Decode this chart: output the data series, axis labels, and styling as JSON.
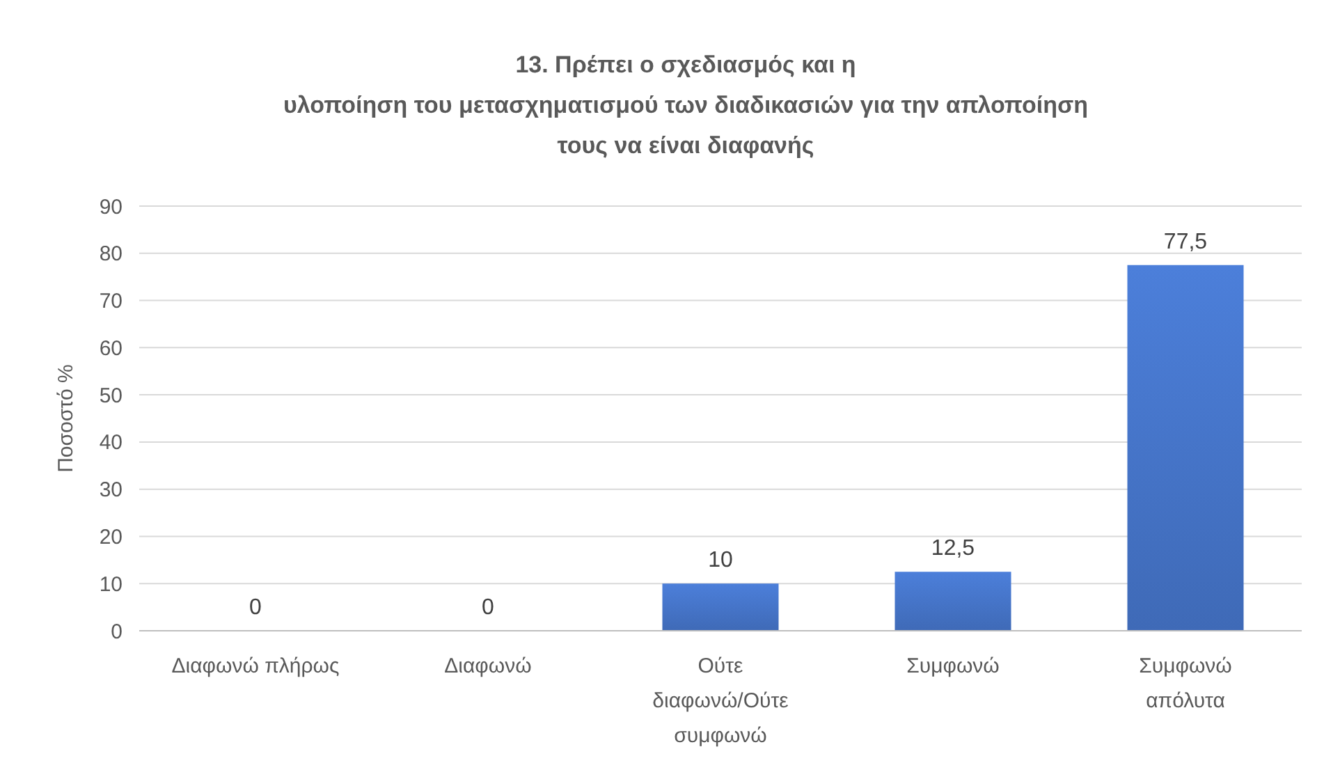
{
  "chart_data": {
    "type": "bar",
    "title": "13. Πρέπει ο σχεδιασμός και η\nυλοποίηση του μετασχηματισμού των διαδικασιών για την απλοποίηση\nτους να είναι διαφανής",
    "ylabel": "Ποσοστό %",
    "categories": [
      "Διαφωνώ πλήρως",
      "Διαφωνώ",
      "Ούτε διαφωνώ/Ούτε συμφωνώ",
      "Συμφωνώ",
      "Συμφωνώ απόλυτα"
    ],
    "values": [
      0,
      0,
      10,
      12.5,
      77.5
    ],
    "value_labels": [
      "0",
      "0",
      "10",
      "12,5",
      "77,5"
    ],
    "color": "#4472c4",
    "ylim": [
      0,
      90
    ],
    "yticks": [
      0,
      10,
      20,
      30,
      40,
      50,
      60,
      70,
      80,
      90
    ],
    "grid": "y"
  }
}
